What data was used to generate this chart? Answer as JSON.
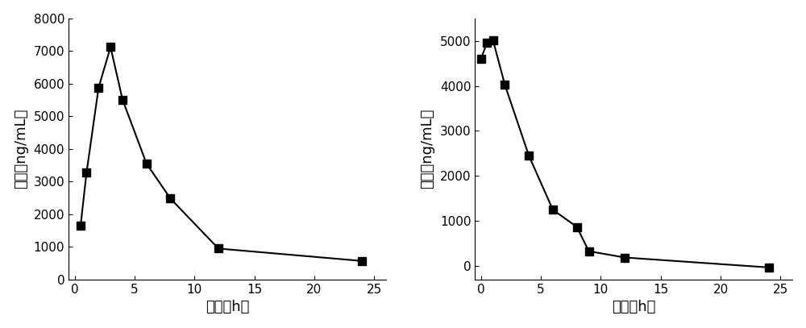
{
  "left": {
    "x": [
      0.5,
      1,
      2,
      3,
      4,
      6,
      8,
      12,
      24
    ],
    "y": [
      1650,
      3280,
      5870,
      7120,
      5510,
      3550,
      2480,
      950,
      570
    ],
    "ylabel": "浓度（ng/mL）",
    "xlabel": "时间（h）",
    "ylim": [
      0,
      8000
    ],
    "yticks": [
      0,
      1000,
      2000,
      3000,
      4000,
      5000,
      6000,
      7000,
      8000
    ],
    "xlim": [
      -0.5,
      26
    ],
    "xticks": [
      0,
      5,
      10,
      15,
      20,
      25
    ]
  },
  "right": {
    "x": [
      0,
      0.5,
      1,
      2,
      4,
      6,
      8,
      9,
      12,
      24
    ],
    "y": [
      4600,
      4950,
      5020,
      4020,
      2450,
      1250,
      870,
      330,
      190,
      -30
    ],
    "ylabel": "浓度（ng/mL）",
    "xlabel": "时间（h）",
    "ylim": [
      -300,
      5500
    ],
    "yticks": [
      0,
      1000,
      2000,
      3000,
      4000,
      5000
    ],
    "xlim": [
      -0.5,
      26
    ],
    "xticks": [
      0,
      5,
      10,
      15,
      20,
      25
    ]
  },
  "marker": "s",
  "marker_size": 7,
  "line_color": "black",
  "line_width": 1.5,
  "line_style": "-",
  "bg_color": "white",
  "tick_fontsize": 11,
  "label_fontsize": 13
}
